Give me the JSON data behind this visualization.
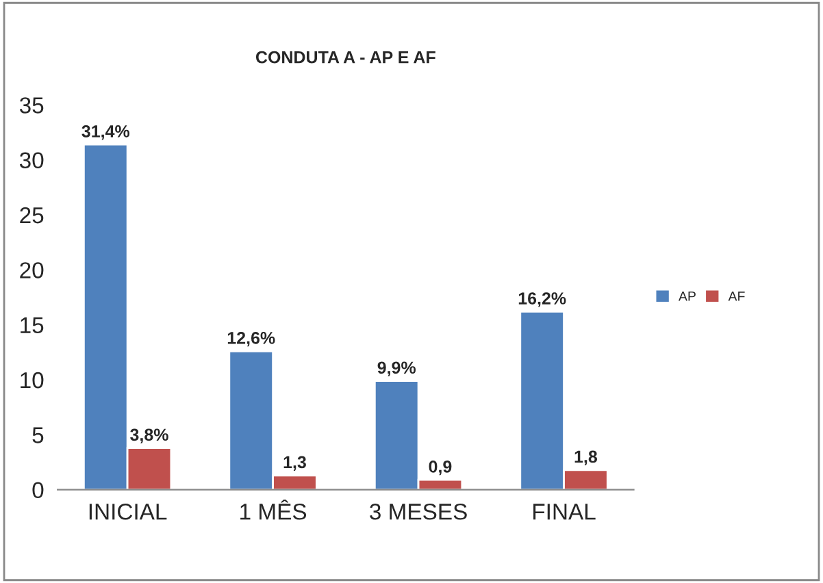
{
  "chart_data": {
    "type": "bar",
    "title": "CONDUTA A - AP E AF",
    "categories": [
      "INICIAL",
      "1 MÊS",
      "3 MESES",
      "FINAL"
    ],
    "series": [
      {
        "name": "AP",
        "color": "#4f81bd",
        "values": [
          31.4,
          12.6,
          9.9,
          16.2
        ],
        "value_labels": [
          "31,4%",
          "12,6%",
          "9,9%",
          "16,2%"
        ]
      },
      {
        "name": "AF",
        "color": "#c0504d",
        "values": [
          3.8,
          1.3,
          0.9,
          1.8
        ],
        "value_labels": [
          "3,8%",
          "1,3",
          "0,9",
          "1,8"
        ]
      }
    ],
    "ylim": [
      0,
      35
    ],
    "yticks": [
      0,
      5,
      10,
      15,
      20,
      25,
      30,
      35
    ],
    "grid": false,
    "legend": "right"
  }
}
